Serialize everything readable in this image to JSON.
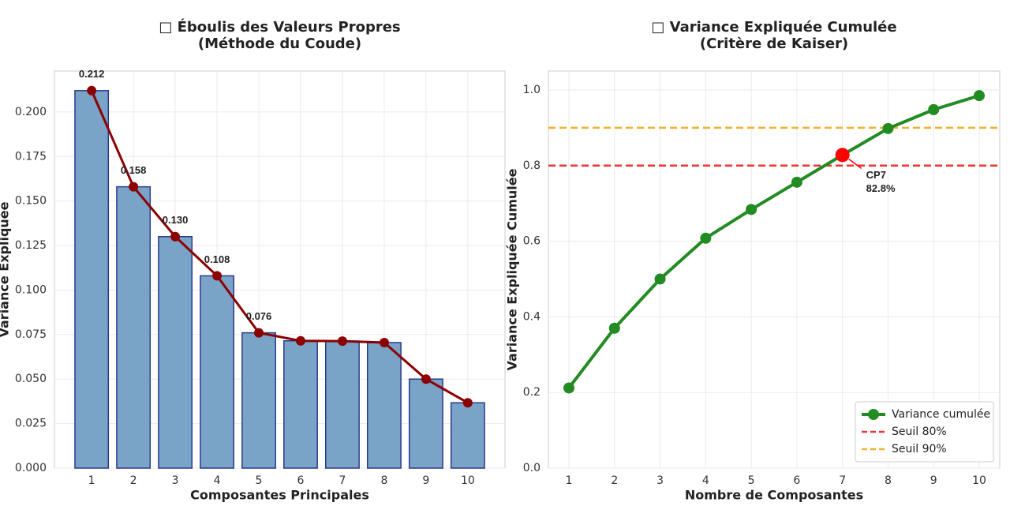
{
  "chart_data": [
    {
      "type": "bar",
      "title": [
        "□ Éboulis des Valeurs Propres",
        "(Méthode du Coude)"
      ],
      "xlabel": "Composantes Principales",
      "ylabel": "Variance Expliquée",
      "categories": [
        "1",
        "2",
        "3",
        "4",
        "5",
        "6",
        "7",
        "8",
        "9",
        "10"
      ],
      "values": [
        0.212,
        0.158,
        0.13,
        0.108,
        0.076,
        0.0715,
        0.0713,
        0.0705,
        0.05,
        0.0367
      ],
      "value_labels": [
        "0.212",
        "0.158",
        "0.130",
        "0.108",
        "0.076",
        null,
        null,
        null,
        null,
        null
      ],
      "color": "#7aa3c8",
      "edge_color": "#2a3a8c",
      "line_color": "#8b0000",
      "ylim": [
        0,
        0.223
      ],
      "yticks": [
        {
          "value": 0,
          "label": "0.000"
        },
        {
          "value": 0.025,
          "label": "0.025"
        },
        {
          "value": 0.05,
          "label": "0.050"
        },
        {
          "value": 0.075,
          "label": "0.075"
        },
        {
          "value": 0.1,
          "label": "0.100"
        },
        {
          "value": 0.125,
          "label": "0.125"
        },
        {
          "value": 0.15,
          "label": "0.150"
        },
        {
          "value": 0.175,
          "label": "0.175"
        },
        {
          "value": 0.2,
          "label": "0.200"
        }
      ],
      "grid": true
    },
    {
      "type": "line",
      "title": [
        "□ Variance Expliquée Cumulée",
        "(Critère de Kaiser)"
      ],
      "xlabel": "Nombre de Composantes",
      "ylabel": "Variance Expliquée Cumulée",
      "x": [
        1,
        2,
        3,
        4,
        5,
        6,
        7,
        8,
        9,
        10
      ],
      "series": [
        {
          "name": "Variance cumulée",
          "color": "#228b22",
          "values": [
            0.212,
            0.37,
            0.5,
            0.608,
            0.684,
            0.756,
            0.828,
            0.898,
            0.948,
            0.985
          ]
        }
      ],
      "hlines": [
        {
          "name": "Seuil 80%",
          "value": 0.8,
          "color": "#ee3333"
        },
        {
          "name": "Seuil 90%",
          "value": 0.9,
          "color": "#f5b030"
        }
      ],
      "highlight": {
        "x": 7,
        "y": 0.828,
        "color": "#ff0000",
        "label": [
          "CP7",
          "82.8%"
        ]
      },
      "xlim": [
        0.55,
        10.45
      ],
      "xticks": [
        1,
        2,
        3,
        4,
        5,
        6,
        7,
        8,
        9,
        10
      ],
      "ylim": [
        0,
        1.05
      ],
      "yticks": [
        {
          "value": 0,
          "label": "0.0"
        },
        0.2,
        0.4,
        0.6,
        0.8,
        {
          "value": 1,
          "label": "1.0"
        }
      ],
      "legend": "lower right",
      "grid": true
    }
  ]
}
